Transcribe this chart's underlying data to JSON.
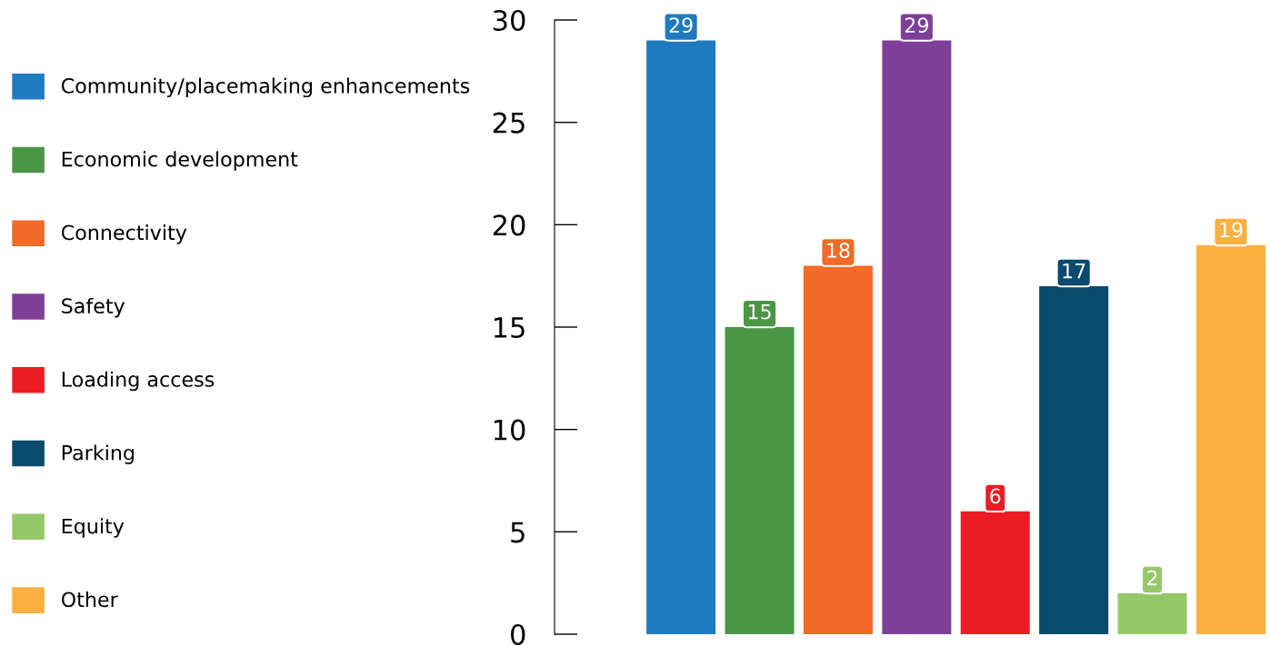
{
  "chart_data": {
    "type": "bar",
    "categories": [
      null,
      null,
      null,
      null,
      null,
      null,
      null,
      null
    ],
    "series": [
      {
        "name": "Community/placemaking enhancements",
        "color": "#1f7bbf",
        "values": [
          29,
          null,
          null,
          null,
          null,
          null,
          null,
          null
        ]
      },
      {
        "name": "Economic development",
        "color": "#4a9645",
        "values": [
          null,
          15,
          null,
          null,
          null,
          null,
          null,
          null
        ]
      },
      {
        "name": "Connectivity",
        "color": "#f26a26",
        "values": [
          null,
          null,
          18,
          null,
          null,
          null,
          null,
          null
        ]
      },
      {
        "name": "Safety",
        "color": "#7f3f98",
        "values": [
          null,
          null,
          null,
          29,
          null,
          null,
          null,
          null
        ]
      },
      {
        "name": "Loading access",
        "color": "#ed1c24",
        "values": [
          null,
          null,
          null,
          null,
          6,
          null,
          null,
          null
        ]
      },
      {
        "name": "Parking",
        "color": "#0a4a6e",
        "values": [
          null,
          null,
          null,
          null,
          null,
          17,
          null,
          null
        ]
      },
      {
        "name": "Equity",
        "color": "#94c96a",
        "values": [
          null,
          null,
          null,
          null,
          null,
          null,
          2,
          null
        ]
      },
      {
        "name": "Other",
        "color": "#fbb040",
        "values": [
          null,
          null,
          null,
          null,
          null,
          null,
          null,
          19
        ]
      }
    ],
    "ylim": [
      0,
      30
    ],
    "yticks": [
      0,
      5,
      10,
      15,
      20,
      25,
      30
    ],
    "stacked": true,
    "data_labels": true,
    "legend": "left",
    "tick_labels": "y",
    "grid": false
  }
}
